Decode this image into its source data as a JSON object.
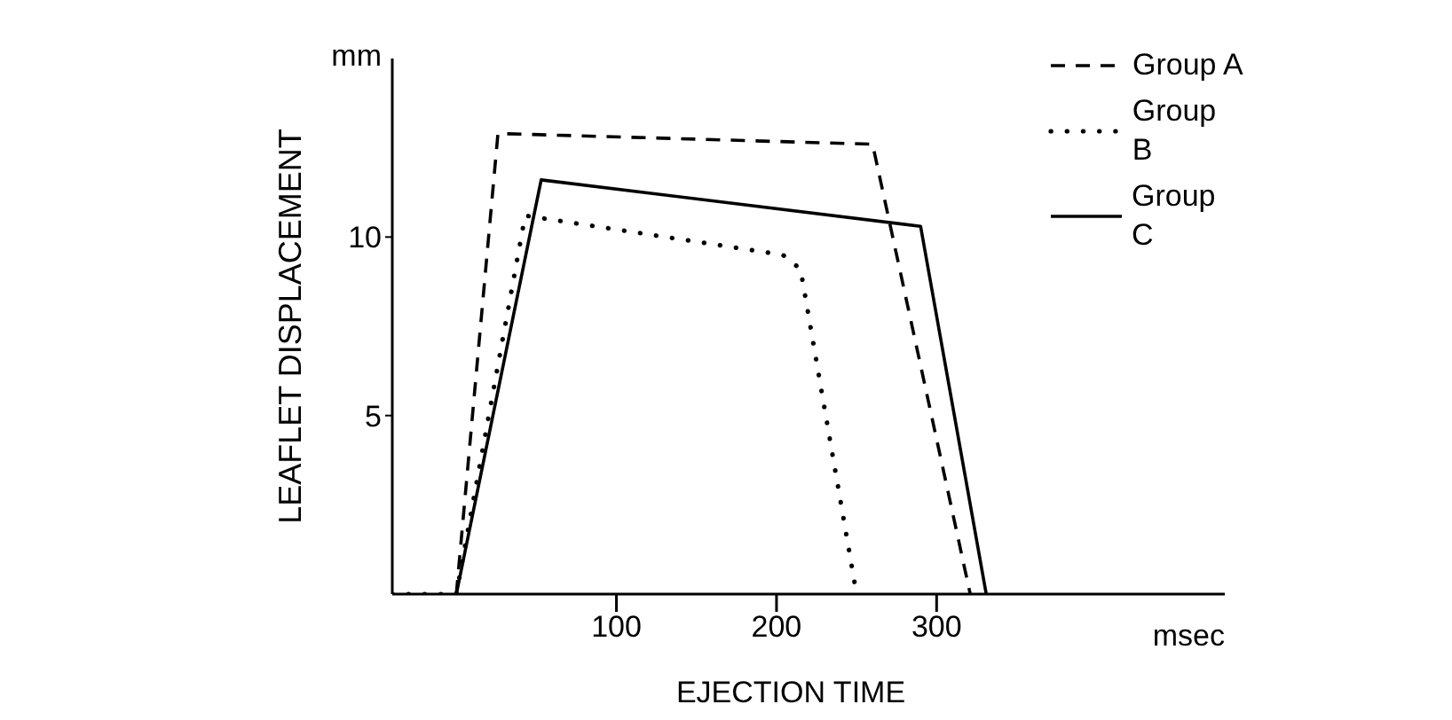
{
  "chart_data": {
    "type": "line",
    "xlabel": "EJECTION TIME",
    "ylabel": "LEAFLET DISPLACEMENT",
    "annotations": [
      "mm",
      "msec"
    ],
    "xlim": [
      -40,
      480
    ],
    "xticks": [
      100,
      200,
      300
    ],
    "ylim": [
      0,
      15
    ],
    "yticks": [
      5,
      10
    ],
    "grid": false,
    "legend": "top right",
    "marker": "none",
    "series": [
      {
        "name": "Group A",
        "color": "#000000",
        "line_style": "dashed",
        "x": [
          0,
          26,
          260,
          321
        ],
        "values": [
          0,
          12.9,
          12.6,
          0
        ]
      },
      {
        "name": "Group B",
        "color": "#000000",
        "line_style": "dotted",
        "x": [
          -40,
          0,
          43,
          204,
          215,
          250
        ],
        "values": [
          0,
          0,
          10.6,
          9.5,
          9.1,
          0
        ]
      },
      {
        "name": "Group C",
        "color": "#000000",
        "line_style": "solid",
        "x": [
          0,
          53,
          290,
          331
        ],
        "values": [
          0,
          11.6,
          10.3,
          0
        ]
      }
    ]
  }
}
